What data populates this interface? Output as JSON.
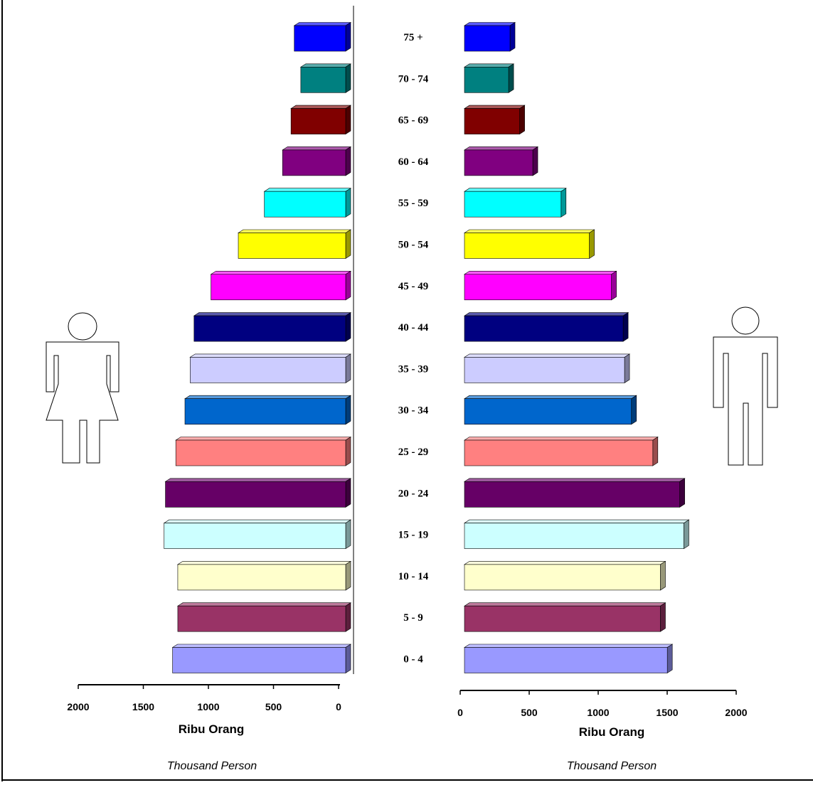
{
  "chart_data": {
    "type": "bar",
    "categories": [
      "75 +",
      "70 - 74",
      "65 - 69",
      "60 - 64",
      "55 - 59",
      "50 - 54",
      "45 - 49",
      "40 - 44",
      "35 - 39",
      "30 - 34",
      "25 - 29",
      "20 - 24",
      "15 - 19",
      "10 - 14",
      "5 - 9",
      "0 - 4"
    ],
    "colors": [
      "#0000FF",
      "#008080",
      "#800000",
      "#800080",
      "#00FFFF",
      "#FFFF00",
      "#FF00FF",
      "#000080",
      "#CCCCFF",
      "#0066CC",
      "#FF8080",
      "#660066",
      "#CCFFFF",
      "#FFFFCC",
      "#993366",
      "#9999FF"
    ],
    "series": [
      {
        "side": "left",
        "values": [
          395,
          345,
          420,
          485,
          625,
          825,
          1035,
          1165,
          1195,
          1235,
          1305,
          1385,
          1395,
          1290,
          1290,
          1330
        ]
      },
      {
        "side": "right",
        "values": [
          330,
          320,
          400,
          495,
          700,
          905,
          1065,
          1150,
          1160,
          1210,
          1365,
          1560,
          1590,
          1420,
          1420,
          1470
        ]
      }
    ],
    "left_axis": {
      "ticks": [
        "2000",
        "1500",
        "1000",
        "500",
        "0"
      ],
      "range": [
        2000,
        0
      ],
      "label": "Ribu Orang",
      "sublabel": "Thousand Person"
    },
    "right_axis": {
      "ticks": [
        "0",
        "500",
        "1000",
        "1500",
        "2000"
      ],
      "range": [
        0,
        2000
      ],
      "label": "Ribu Orang",
      "sublabel": "Thousand Person"
    },
    "icons": {
      "left": "female-figure-icon",
      "right": "male-figure-icon"
    },
    "grid": false,
    "legend": "none"
  }
}
